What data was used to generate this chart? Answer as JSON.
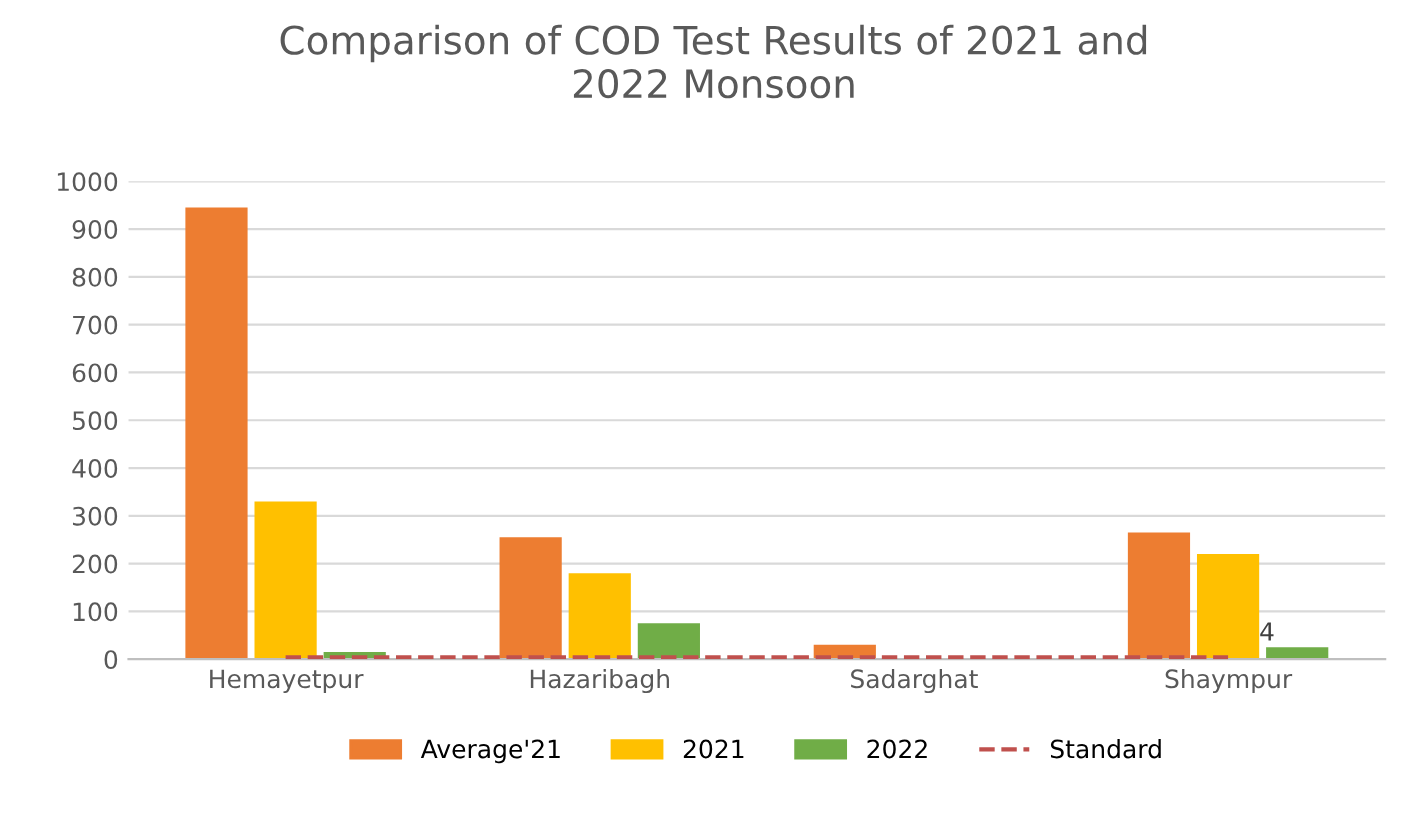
{
  "chart_data": {
    "type": "bar",
    "title": "Comparison of COD Test Results of 2021 and\n2022 Monsoon",
    "categories": [
      "Hemayetpur",
      "Hazaribagh",
      "Sadarghat",
      "Shaympur"
    ],
    "series": [
      {
        "name": "Average'21",
        "color": "#ed7d31",
        "values": [
          945,
          255,
          30,
          265
        ]
      },
      {
        "name": "2021",
        "color": "#ffc000",
        "values": [
          330,
          180,
          null,
          220
        ]
      },
      {
        "name": "2022",
        "color": "#70ad47",
        "values": [
          15,
          75,
          null,
          25
        ]
      },
      {
        "name": "Standard",
        "type": "line",
        "color": "#c0504d",
        "line_style": "dashed",
        "values": [
          4,
          4,
          4,
          4
        ],
        "value_labels": [
          null,
          null,
          null,
          "4"
        ]
      }
    ],
    "ylim": [
      0,
      1000
    ],
    "yticks": [
      0,
      100,
      200,
      300,
      400,
      500,
      600,
      700,
      800,
      900,
      1000
    ],
    "grid": "y",
    "legend": "bottom"
  }
}
